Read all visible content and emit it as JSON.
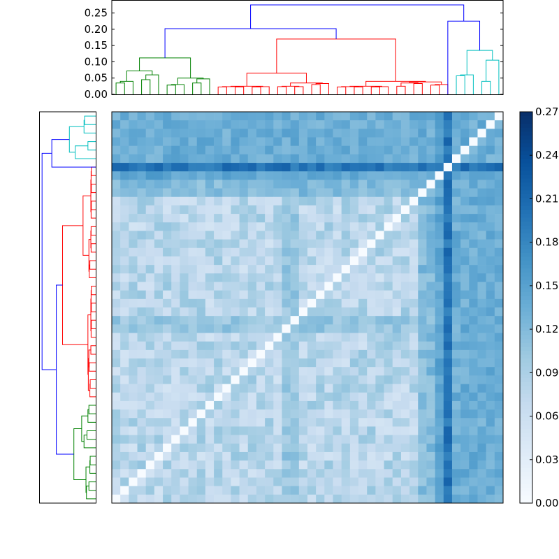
{
  "chart_data": [
    {
      "type": "dendrogram",
      "panel": "top",
      "ylim": [
        0,
        0.29
      ],
      "ytick_labels": [
        "0.00",
        "0.05",
        "0.10",
        "0.15",
        "0.20",
        "0.25"
      ],
      "yticks": [
        0,
        0.05,
        0.1,
        0.15,
        0.2,
        0.25
      ],
      "cluster_colors": {
        "green": "#008000",
        "red": "#ff0000",
        "cyan": "#00bfbf",
        "link": "#0000ff"
      },
      "clusters": [
        {
          "color": "green",
          "leaves": 12,
          "root_height": 0.112,
          "merge_heights": [
            0.072,
            0.05,
            0.04,
            0.06,
            0.035,
            0.045,
            0.03,
            0.075,
            0.06,
            0.035,
            0.03
          ]
        },
        {
          "color": "red",
          "leaves": 28,
          "root_height": 0.17,
          "merge_heights": [
            0.065,
            0.04,
            0.025,
            0.035,
            0.03,
            0.055,
            0.075,
            0.045,
            0.03,
            0.025,
            0.085,
            0.05,
            0.035,
            0.03,
            0.025,
            0.08,
            0.06,
            0.04,
            0.035,
            0.03,
            0.025,
            0.035,
            0.03,
            0.025,
            0.155,
            0.1,
            0.05
          ]
        },
        {
          "color": "cyan",
          "leaves": 6,
          "root_height": 0.135,
          "merge_heights": [
            0.06,
            0.105,
            0.09,
            0.04,
            0.06
          ]
        }
      ],
      "links": [
        {
          "color": "link",
          "height": 0.202,
          "joins": [
            "green",
            "red"
          ]
        },
        {
          "color": "link",
          "height": 0.225,
          "joins": [
            "red-tail",
            "cyan"
          ]
        },
        {
          "color": "link",
          "height": 0.275,
          "joins": [
            "green+red",
            "tail+cyan"
          ]
        }
      ]
    },
    {
      "type": "dendrogram",
      "panel": "left",
      "orientation": "left",
      "cluster_order_top_to_bottom": [
        "cyan",
        "red",
        "green"
      ],
      "clusters": [
        {
          "color": "cyan",
          "leaves": 6
        },
        {
          "color": "red",
          "leaves": 28
        },
        {
          "color": "green",
          "leaves": 12
        }
      ]
    },
    {
      "type": "heatmap",
      "rows": 46,
      "cols": 46,
      "description_of_values": "pairwise distance matrix, zero diagonal; strong rows/cols near leaf index ~38-40 and ~6-8 (top) with values up to ~0.27",
      "colormap": "Blues",
      "vmin": 0.0,
      "vmax": 0.27,
      "colorbar_ticks": [
        0.0,
        0.03,
        0.06,
        0.09,
        0.12,
        0.15,
        0.18,
        0.21,
        0.24,
        0.27
      ],
      "colorbar_tick_labels": [
        "0.00",
        "0.03",
        "0.06",
        "0.09",
        "0.12",
        "0.15",
        "0.18",
        "0.21",
        "0.24",
        "0.27"
      ]
    }
  ]
}
